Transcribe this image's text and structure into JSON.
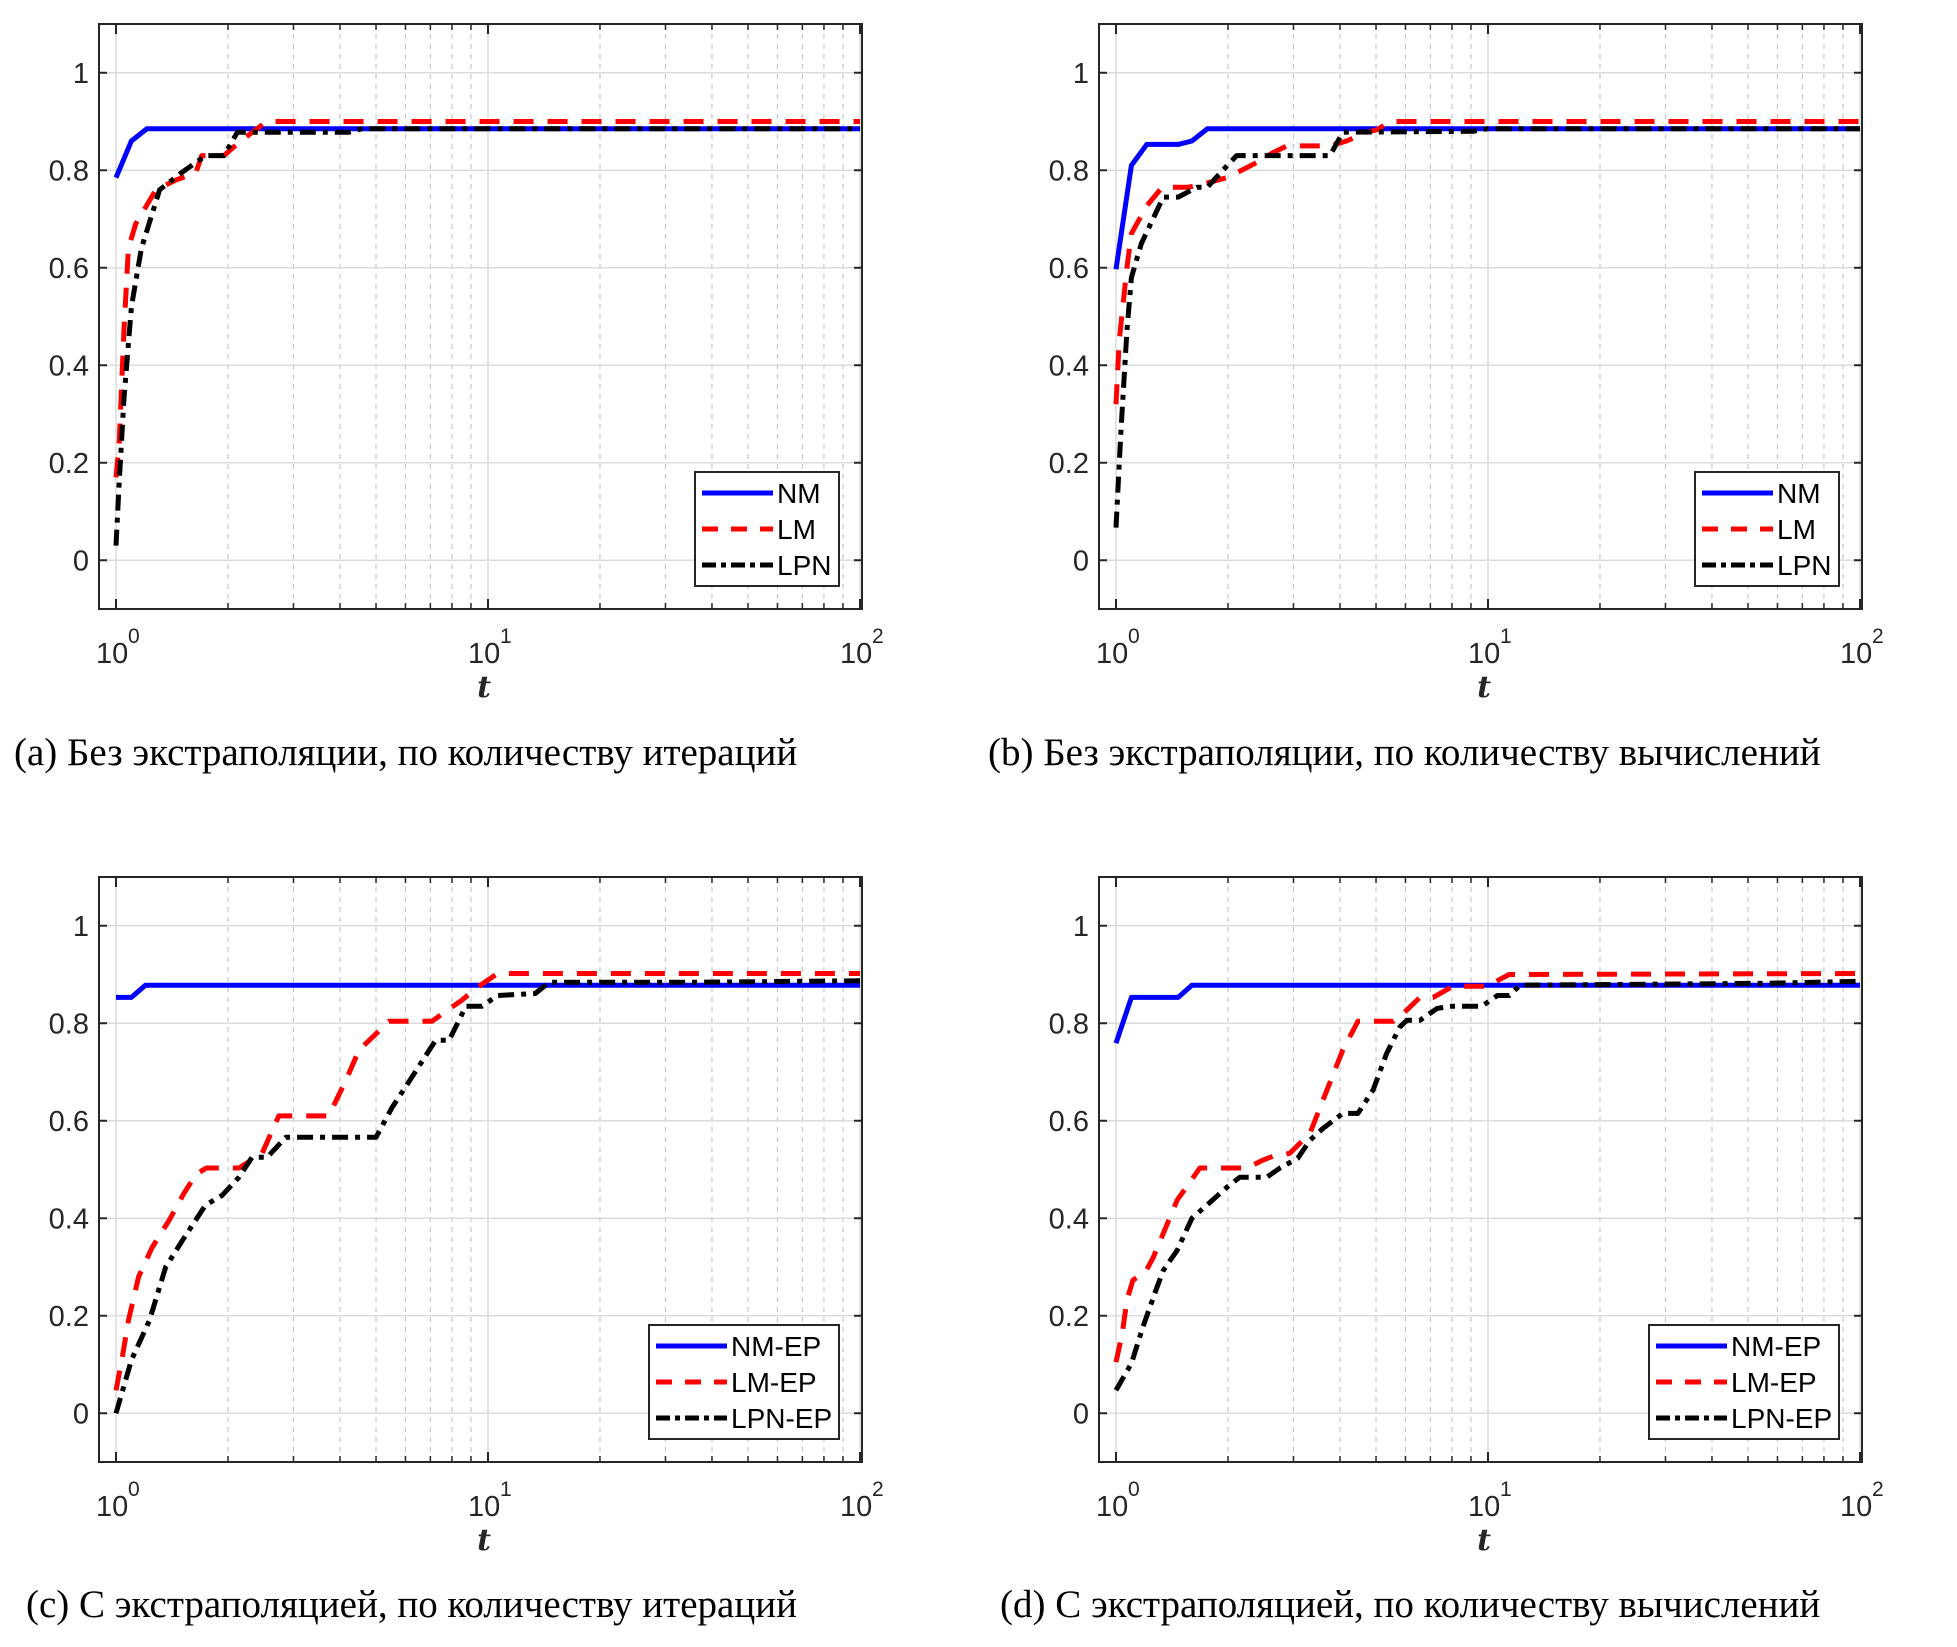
{
  "figure": {
    "panels_count": 4
  },
  "chart_data": [
    {
      "id": "a",
      "type": "line",
      "caption": "(a) Без экстраполяции, по количеству итераций",
      "xlabel": "t",
      "ylabel": "",
      "xscale": "log",
      "xlim": [
        1,
        100
      ],
      "ylim": [
        -0.1,
        1.1
      ],
      "xticks": [
        {
          "base": "10",
          "exp": "0",
          "value": 1
        },
        {
          "base": "10",
          "exp": "1",
          "value": 10
        },
        {
          "base": "10",
          "exp": "2",
          "value": 100
        }
      ],
      "yticks": [
        {
          "label": "0",
          "value": 0
        },
        {
          "label": "0.2",
          "value": 0.2
        },
        {
          "label": "0.4",
          "value": 0.4
        },
        {
          "label": "0.6",
          "value": 0.6
        },
        {
          "label": "0.8",
          "value": 0.8
        },
        {
          "label": "1",
          "value": 1
        }
      ],
      "grid": true,
      "legend_position": "bottom-right",
      "series": [
        {
          "name": "NM",
          "color": "#0000ff",
          "style": "solid",
          "x": [
            1.0,
            1.1,
            1.21,
            100
          ],
          "y": [
            0.785,
            0.86,
            0.885,
            0.885
          ]
        },
        {
          "name": "LM",
          "color": "#ff0000",
          "style": "dashed",
          "x": [
            1.0,
            1.02,
            1.05,
            1.08,
            1.13,
            1.28,
            1.45,
            1.64,
            1.7,
            1.95,
            2.14,
            2.54,
            100
          ],
          "y": [
            0.17,
            0.24,
            0.47,
            0.64,
            0.69,
            0.76,
            0.78,
            0.795,
            0.83,
            0.83,
            0.857,
            0.9,
            0.9
          ]
        },
        {
          "name": "LPN",
          "color": "#000000",
          "style": "dashdot",
          "x": [
            1.0,
            1.02,
            1.05,
            1.1,
            1.17,
            1.31,
            1.5,
            1.74,
            1.95,
            2.12,
            4.23,
            4.58,
            100
          ],
          "y": [
            0.03,
            0.16,
            0.33,
            0.52,
            0.64,
            0.76,
            0.795,
            0.83,
            0.83,
            0.878,
            0.878,
            0.885,
            0.885
          ]
        }
      ]
    },
    {
      "id": "b",
      "type": "line",
      "caption": "(b) Без экстраполяции, по количеству вычислений",
      "xlabel": "t",
      "ylabel": "",
      "xscale": "log",
      "xlim": [
        1,
        100
      ],
      "ylim": [
        -0.1,
        1.1
      ],
      "xticks": [
        {
          "base": "10",
          "exp": "0",
          "value": 1
        },
        {
          "base": "10",
          "exp": "1",
          "value": 10
        },
        {
          "base": "10",
          "exp": "2",
          "value": 100
        }
      ],
      "yticks": [
        {
          "label": "0",
          "value": 0
        },
        {
          "label": "0.2",
          "value": 0.2
        },
        {
          "label": "0.4",
          "value": 0.4
        },
        {
          "label": "0.6",
          "value": 0.6
        },
        {
          "label": "0.8",
          "value": 0.8
        },
        {
          "label": "1",
          "value": 1
        }
      ],
      "grid": true,
      "legend_position": "bottom-right",
      "series": [
        {
          "name": "NM",
          "color": "#0000ff",
          "style": "solid",
          "x": [
            1.0,
            1.1,
            1.21,
            1.47,
            1.6,
            1.76,
            100
          ],
          "y": [
            0.597,
            0.81,
            0.853,
            0.853,
            0.86,
            0.885,
            0.885
          ]
        },
        {
          "name": "LM",
          "color": "#ff0000",
          "style": "dashed",
          "x": [
            1.0,
            1.02,
            1.07,
            1.1,
            1.21,
            1.33,
            1.56,
            1.68,
            1.99,
            2.39,
            2.64,
            2.88,
            3.76,
            4.17,
            4.72,
            5.03,
            5.45,
            100
          ],
          "y": [
            0.32,
            0.45,
            0.6,
            0.67,
            0.727,
            0.765,
            0.765,
            0.77,
            0.785,
            0.816,
            0.836,
            0.85,
            0.85,
            0.86,
            0.878,
            0.883,
            0.9,
            0.9
          ]
        },
        {
          "name": "LPN",
          "color": "#000000",
          "style": "dashdot",
          "x": [
            1.0,
            1.03,
            1.07,
            1.1,
            1.17,
            1.34,
            1.47,
            1.65,
            1.76,
            1.91,
            2.11,
            3.76,
            4.07,
            9.1,
            9.93,
            100
          ],
          "y": [
            0.067,
            0.26,
            0.47,
            0.58,
            0.65,
            0.745,
            0.745,
            0.765,
            0.765,
            0.795,
            0.83,
            0.83,
            0.878,
            0.88,
            0.885,
            0.885
          ]
        }
      ]
    },
    {
      "id": "c",
      "type": "line",
      "caption": "(c) С экстраполяцией, по количеству итераций",
      "xlabel": "t",
      "ylabel": "",
      "xscale": "log",
      "xlim": [
        1,
        100
      ],
      "ylim": [
        -0.1,
        1.1
      ],
      "xticks": [
        {
          "base": "10",
          "exp": "0",
          "value": 1
        },
        {
          "base": "10",
          "exp": "1",
          "value": 10
        },
        {
          "base": "10",
          "exp": "2",
          "value": 100
        }
      ],
      "yticks": [
        {
          "label": "0",
          "value": 0
        },
        {
          "label": "0.2",
          "value": 0.2
        },
        {
          "label": "0.4",
          "value": 0.4
        },
        {
          "label": "0.6",
          "value": 0.6
        },
        {
          "label": "0.8",
          "value": 0.8
        },
        {
          "label": "1",
          "value": 1
        }
      ],
      "grid": true,
      "legend_position": "bottom-right",
      "series": [
        {
          "name": "NM-EP",
          "color": "#0000ff",
          "style": "solid",
          "x": [
            1.0,
            1.1,
            1.2,
            100
          ],
          "y": [
            0.853,
            0.853,
            0.878,
            0.878
          ]
        },
        {
          "name": "LM-EP",
          "color": "#ff0000",
          "style": "dashed",
          "x": [
            1.0,
            1.04,
            1.08,
            1.15,
            1.25,
            1.39,
            1.52,
            1.64,
            1.75,
            2.14,
            2.47,
            2.74,
            3.73,
            4.15,
            4.5,
            5.42,
            7.06,
            8.5,
            9.3,
            10.6,
            100
          ],
          "y": [
            0.047,
            0.115,
            0.19,
            0.28,
            0.34,
            0.396,
            0.45,
            0.49,
            0.503,
            0.503,
            0.533,
            0.61,
            0.61,
            0.683,
            0.745,
            0.804,
            0.804,
            0.847,
            0.872,
            0.902,
            0.902
          ]
        },
        {
          "name": "LPN-EP",
          "color": "#000000",
          "style": "dashdot",
          "x": [
            1.0,
            1.1,
            1.23,
            1.36,
            1.51,
            1.74,
            1.93,
            2.14,
            2.32,
            2.55,
            2.86,
            5.0,
            5.53,
            6.25,
            7.23,
            7.86,
            8.72,
            9.64,
            10.6,
            13.4,
            14.6,
            34.9,
            100
          ],
          "y": [
            0.0,
            0.109,
            0.19,
            0.3,
            0.355,
            0.427,
            0.447,
            0.484,
            0.525,
            0.525,
            0.566,
            0.566,
            0.628,
            0.69,
            0.765,
            0.765,
            0.835,
            0.835,
            0.857,
            0.861,
            0.884,
            0.884,
            0.887
          ]
        }
      ]
    },
    {
      "id": "d",
      "type": "line",
      "caption": "(d) С экстраполяцией, по количеству вычислений",
      "xlabel": "t",
      "ylabel": "",
      "xscale": "log",
      "xlim": [
        1,
        100
      ],
      "ylim": [
        -0.1,
        1.1
      ],
      "xticks": [
        {
          "base": "10",
          "exp": "0",
          "value": 1
        },
        {
          "base": "10",
          "exp": "1",
          "value": 10
        },
        {
          "base": "10",
          "exp": "2",
          "value": 100
        }
      ],
      "yticks": [
        {
          "label": "0",
          "value": 0
        },
        {
          "label": "0.2",
          "value": 0.2
        },
        {
          "label": "0.4",
          "value": 0.4
        },
        {
          "label": "0.6",
          "value": 0.6
        },
        {
          "label": "0.8",
          "value": 0.8
        },
        {
          "label": "1",
          "value": 1
        }
      ],
      "grid": true,
      "legend_position": "bottom-right",
      "series": [
        {
          "name": "NM-EP",
          "color": "#0000ff",
          "style": "solid",
          "x": [
            1.0,
            1.1,
            1.47,
            1.6,
            100
          ],
          "y": [
            0.759,
            0.853,
            0.853,
            0.878,
            0.878
          ]
        },
        {
          "name": "LM-EP",
          "color": "#ff0000",
          "style": "dashed",
          "x": [
            1.0,
            1.04,
            1.07,
            1.11,
            1.2,
            1.26,
            1.34,
            1.46,
            1.58,
            1.68,
            2.25,
            2.48,
            2.64,
            2.93,
            3.32,
            3.6,
            4.07,
            4.47,
            5.56,
            6.05,
            6.56,
            7.12,
            8.05,
            9.93,
            11.4,
            100
          ],
          "y": [
            0.105,
            0.164,
            0.232,
            0.273,
            0.29,
            0.32,
            0.369,
            0.437,
            0.474,
            0.503,
            0.503,
            0.519,
            0.527,
            0.533,
            0.574,
            0.642,
            0.745,
            0.804,
            0.804,
            0.827,
            0.853,
            0.853,
            0.876,
            0.876,
            0.9,
            0.902
          ]
        },
        {
          "name": "LPN-EP",
          "color": "#000000",
          "style": "dashdot",
          "x": [
            1.0,
            1.1,
            1.18,
            1.29,
            1.34,
            1.46,
            1.6,
            1.79,
            1.99,
            2.15,
            2.54,
            2.76,
            3.08,
            3.32,
            3.6,
            4.07,
            4.47,
            4.91,
            5.34,
            5.79,
            6.05,
            6.56,
            7.29,
            7.87,
            9.63,
            10.6,
            11.4,
            12.2,
            56,
            100
          ],
          "y": [
            0.047,
            0.102,
            0.176,
            0.259,
            0.293,
            0.334,
            0.4,
            0.433,
            0.464,
            0.484,
            0.484,
            0.503,
            0.523,
            0.56,
            0.584,
            0.615,
            0.615,
            0.663,
            0.738,
            0.792,
            0.806,
            0.806,
            0.83,
            0.835,
            0.835,
            0.857,
            0.857,
            0.878,
            0.882,
            0.886
          ]
        }
      ]
    }
  ]
}
